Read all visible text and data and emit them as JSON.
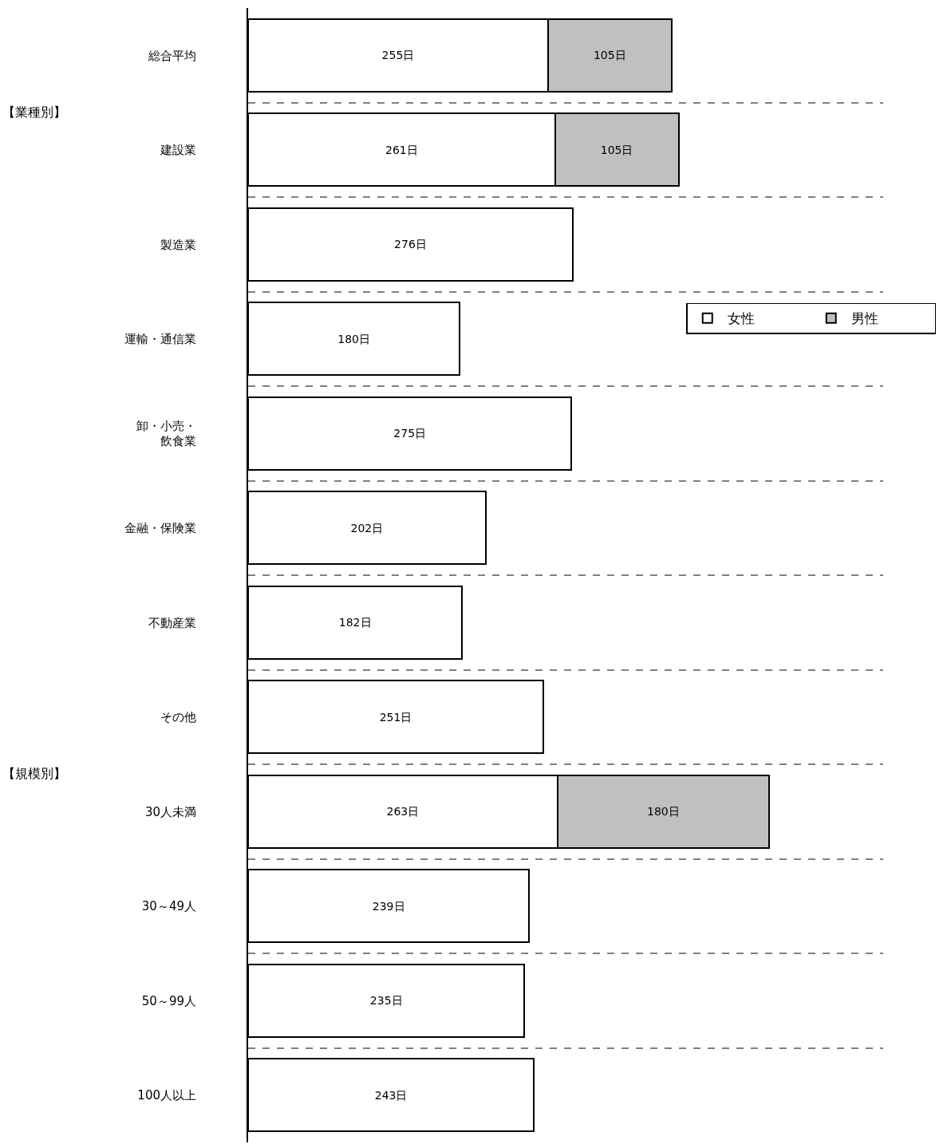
{
  "chart_data": {
    "type": "bar",
    "orientation": "horizontal",
    "stacked": true,
    "categories": [
      "総合平均",
      "建設業",
      "製造業",
      "運輸・通信業",
      "卸・小売・飲食業",
      "金融・保険業",
      "不動産業",
      "その他",
      "30人未満",
      "30～49人",
      "50～99人",
      "100人以上"
    ],
    "series": [
      {
        "name": "女性",
        "color": "#ffffff",
        "values": [
          255,
          261,
          276,
          180,
          275,
          202,
          182,
          251,
          263,
          239,
          235,
          243
        ],
        "value_labels": [
          "255日",
          "261日",
          "276日",
          "180日",
          "275日",
          "202日",
          "182日",
          "251日",
          "263日",
          "239日",
          "235日",
          "243日"
        ]
      },
      {
        "name": "男性",
        "color": "#c0c0c0",
        "values": [
          105,
          105,
          null,
          null,
          null,
          null,
          null,
          null,
          180,
          null,
          null,
          null
        ],
        "value_labels": [
          "105日",
          "105日",
          null,
          null,
          null,
          null,
          null,
          null,
          "180日",
          null,
          null,
          null
        ]
      }
    ],
    "annotations": [
      "【業種別】",
      "【規模別】"
    ],
    "xlim": [
      0,
      540
    ],
    "tick_labels": "y",
    "grid": "y",
    "legend": "right"
  }
}
